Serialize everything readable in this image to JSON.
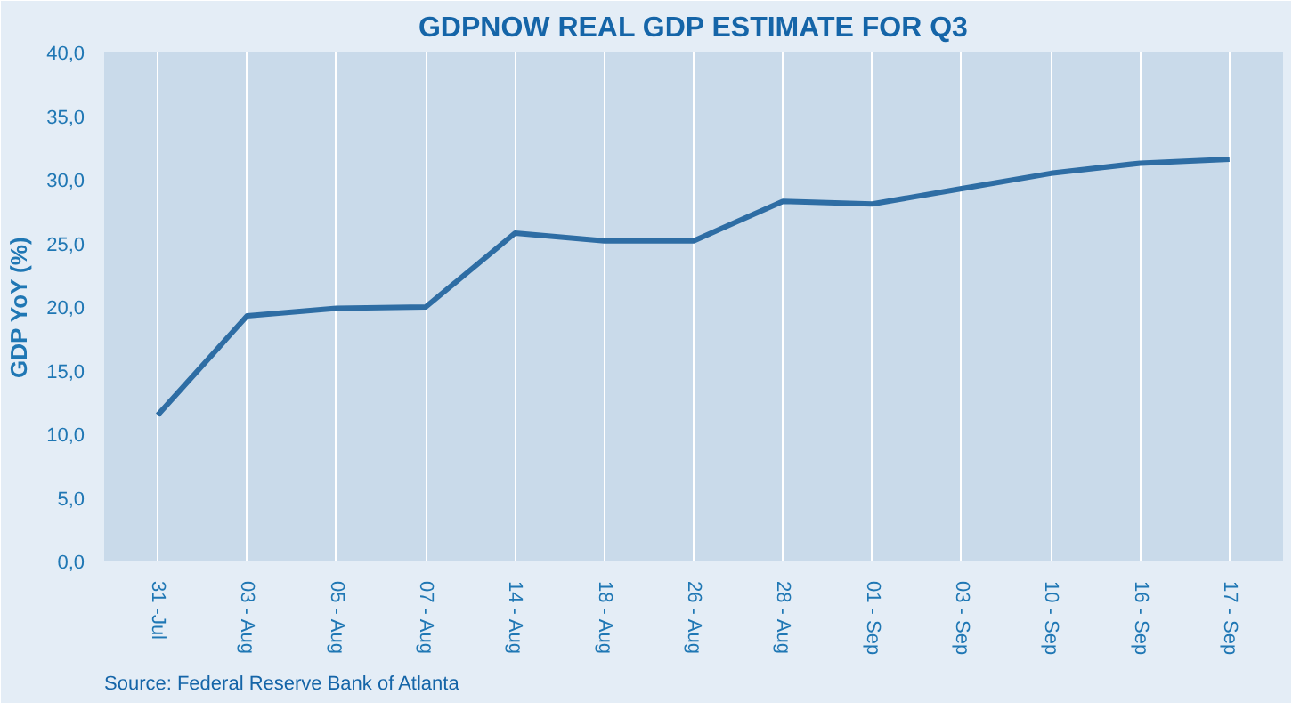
{
  "chart_data": {
    "type": "line",
    "title": "GDPNOW REAL GDP ESTIMATE FOR Q3",
    "ylabel": "GDP YoY (%)",
    "categories": [
      "31 -Jul",
      "03 - Aug",
      "05 - Aug",
      "07 - Aug",
      "14 - Aug",
      "18 - Aug",
      "26 - Aug",
      "28 - Aug",
      "01 - Sep",
      "03 - Sep",
      "10 - Sep",
      "16 - Sep",
      "17 - Sep"
    ],
    "series": [
      {
        "color": "#2e6da4",
        "values": [
          11.5,
          19.3,
          19.9,
          20.0,
          25.8,
          25.2,
          25.2,
          28.3,
          28.1,
          29.3,
          30.5,
          31.3,
          31.6
        ]
      }
    ],
    "ylim": [
      0,
      40
    ],
    "yticks": [
      {
        "value": 0,
        "label": "0,0"
      },
      {
        "value": 5,
        "label": "5,0"
      },
      {
        "value": 10,
        "label": "10,0"
      },
      {
        "value": 15,
        "label": "15,0"
      },
      {
        "value": 20,
        "label": "20,0"
      },
      {
        "value": 25,
        "label": "25,0"
      },
      {
        "value": 30,
        "label": "30,0"
      },
      {
        "value": 35,
        "label": "35,0"
      },
      {
        "value": 40,
        "label": "40,0"
      }
    ],
    "grid": "x",
    "marker": "none",
    "line_style": "solid",
    "annotations": [
      "Source: Federal Reserve Bank of Atlanta"
    ]
  }
}
